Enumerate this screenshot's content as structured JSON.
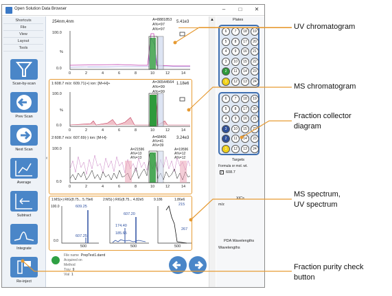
{
  "window": {
    "title": "Open Solution Data Browser",
    "minimize": "–",
    "maximize": "□",
    "close": "✕"
  },
  "sidebar": {
    "menu": [
      "Shortcuts",
      "File",
      "View",
      "Layout",
      "Tools"
    ],
    "tools": [
      {
        "label": "Scan-by-scan",
        "icon": "funnel-icon"
      },
      {
        "label": "Prev Scan",
        "icon": "arrow-left-icon"
      },
      {
        "label": "Next Scan",
        "icon": "arrow-right-icon"
      },
      {
        "label": "Average",
        "icon": "average-icon"
      },
      {
        "label": "Subtract",
        "icon": "subtract-icon"
      },
      {
        "label": "Integrate",
        "icon": "integrate-icon"
      },
      {
        "label": "Re-inject",
        "icon": "reinject-icon"
      }
    ]
  },
  "uv_chart": {
    "title": "254nm,4nm",
    "max": "5.41e3",
    "area": "A=8881853",
    "pct1": "A%=97",
    "pct2": "A%=97",
    "ytop": "100.0",
    "ybot": "0.0",
    "ylabel": "%",
    "xticks": [
      "0",
      "2",
      "4",
      "6",
      "8",
      "10",
      "12",
      "14"
    ]
  },
  "ms_chart": {
    "title": "1:608.7 m/z: 609.71(+) ion: [M+H]+",
    "max": "1.18e6",
    "area": "A=36544564",
    "pct1": "A%=99",
    "pct2": "A%=99",
    "ytop": "100.0",
    "ybot": "0.0",
    "ylabel": "%",
    "xticks": [
      "0",
      "2",
      "4",
      "6",
      "8",
      "10",
      "12",
      "14"
    ]
  },
  "ms_chart2": {
    "title": "2:608.7 m/z: 607.69(-) ion: [M-H]-",
    "max": "3.24e3",
    "area1": "A=68406",
    "pct_a": "A%=41",
    "pct_b": "A%=39",
    "area2": "A=21596",
    "pct_c": "A%=13",
    "pct_d": "A%=13",
    "area3": "A=19596",
    "pct_e": "A%=12",
    "pct_f": "A%=12",
    "ytop": "100.0",
    "ybot": "0.0",
    "xticks": [
      "0",
      "2",
      "4",
      "6",
      "8",
      "10",
      "12",
      "14"
    ]
  },
  "spectra": {
    "header1": "1:MS(+) RIG(8.75... 5.79e6",
    "header2": "2:MS(-) RIG(8.75... 4.82e5",
    "header3": "9.186",
    "header4": "1.86e6",
    "s1": {
      "ytop": "100.0",
      "ybot": "0.0",
      "peak1": "609.25",
      "peak2": "607.25",
      "xtick": "500"
    },
    "s2": {
      "peak1": "607.20",
      "peak2": "174.40",
      "peak3": "185.65",
      "xtick": "500"
    },
    "s3": {
      "peak1": "215",
      "peak2": "267",
      "xtick": "500"
    }
  },
  "file_info": {
    "filename_label": "File name",
    "filename": "PrepTest1.darrd",
    "acquired_label": "Acquired on",
    "method_label": "Method",
    "tray_label": "Tray",
    "tray": "9",
    "vial_label": "Vial",
    "vial": "1"
  },
  "right_panel": {
    "plates_title": "Plates",
    "targets_title": "Targets",
    "formula_label": "Formula or mol. wt.",
    "target_value": "608.7",
    "xics_title": "XICs",
    "mz_label": "m/z",
    "pda_title": "PDA Wavelengths",
    "wavelengths_label": "Wavelengths",
    "plate1": [
      [
        "6",
        "7",
        "18",
        "19"
      ],
      [
        "5",
        "8",
        "17",
        "20"
      ],
      [
        "4",
        "9",
        "16",
        "21"
      ],
      [
        "3",
        "10",
        "15",
        "22"
      ],
      [
        "2",
        "11",
        "14",
        "23"
      ],
      [
        "1",
        "12",
        "13",
        "24"
      ]
    ],
    "plate2": [
      [
        "6",
        "7",
        "18",
        "19"
      ],
      [
        "5",
        "8",
        "17",
        "20"
      ],
      [
        "4",
        "9",
        "16",
        "21"
      ],
      [
        "3",
        "10",
        "15",
        "22"
      ],
      [
        "2",
        "11",
        "14",
        "23"
      ],
      [
        "1",
        "12",
        "13",
        "24"
      ]
    ]
  },
  "callouts": {
    "uv": "UV chromatogram",
    "ms": "MS chromatogram",
    "fraction1": "Fraction collector",
    "fraction2": "diagram",
    "spectrum1": "MS spectrum,",
    "spectrum2": "UV spectrum",
    "purity1": "Fraction purity check",
    "purity2": "button"
  },
  "colors": {
    "accent": "#e69a32",
    "tool_blue": "#4a86c8",
    "plate_border": "#3f6fb0",
    "fill_green": "#2e9a3c",
    "status_green": "#2fa043",
    "well_blue": "#2e4f98",
    "well_green": "#2e9a3c",
    "well_yellow": "#f1d21a"
  }
}
